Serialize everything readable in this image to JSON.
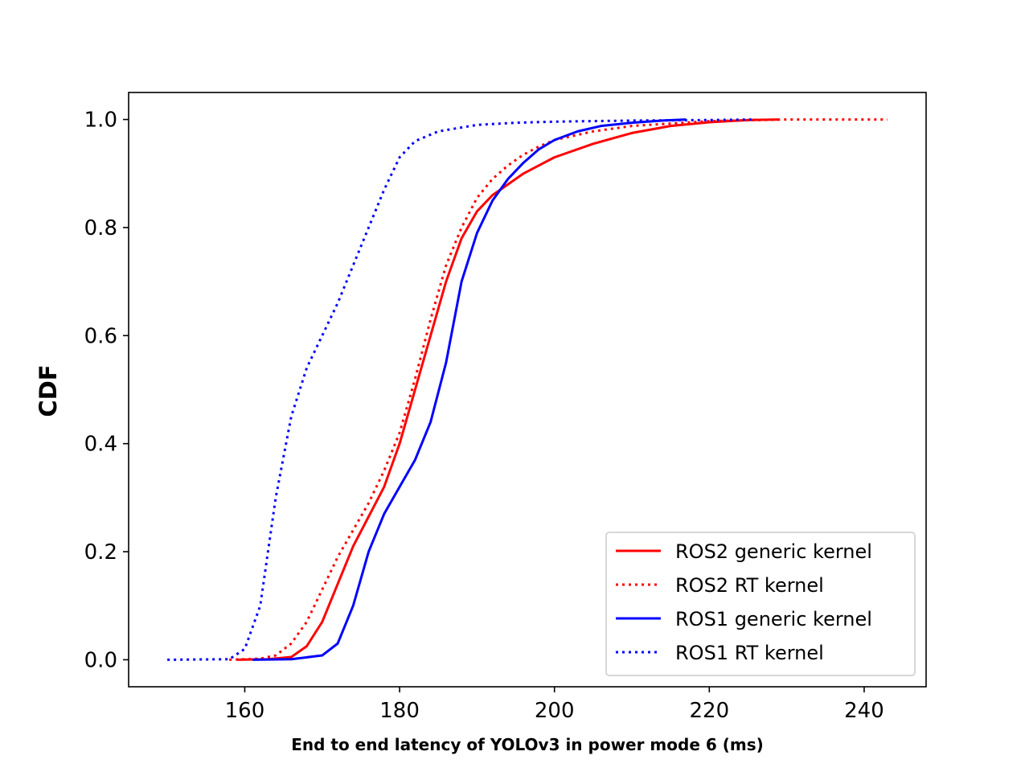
{
  "chart_data": {
    "type": "line",
    "title": "",
    "xlabel": "End to end latency of YOLOv3 in power mode 6 (ms)",
    "ylabel": "CDF",
    "xlim": [
      145,
      248
    ],
    "ylim": [
      -0.05,
      1.05
    ],
    "xticks": [
      "160",
      "180",
      "200",
      "220",
      "240"
    ],
    "yticks": [
      "0.0",
      "0.2",
      "0.4",
      "0.6",
      "0.8",
      "1.0"
    ],
    "grid": false,
    "legend_position": "lower-right",
    "series": [
      {
        "name": "ROS2 generic kernel",
        "color": "#ff0000",
        "dash": "solid",
        "x": [
          159,
          163,
          166,
          168,
          170,
          172,
          174,
          176,
          178,
          180,
          182,
          184,
          186,
          188,
          190,
          192,
          194,
          196,
          198,
          200,
          205,
          210,
          215,
          220,
          225,
          229
        ],
        "y": [
          0.0,
          0.001,
          0.005,
          0.025,
          0.07,
          0.14,
          0.21,
          0.265,
          0.32,
          0.4,
          0.5,
          0.6,
          0.7,
          0.78,
          0.83,
          0.86,
          0.88,
          0.9,
          0.915,
          0.93,
          0.955,
          0.975,
          0.988,
          0.995,
          0.999,
          1.0
        ]
      },
      {
        "name": "ROS2 RT kernel",
        "color": "#ff0000",
        "dash": "dotted",
        "x": [
          158,
          162,
          164,
          166,
          168,
          170,
          172,
          174,
          176,
          178,
          180,
          182,
          184,
          186,
          188,
          190,
          192,
          194,
          196,
          198,
          200,
          205,
          210,
          220,
          230,
          243
        ],
        "y": [
          0.0,
          0.002,
          0.008,
          0.03,
          0.07,
          0.13,
          0.19,
          0.24,
          0.29,
          0.35,
          0.42,
          0.52,
          0.63,
          0.73,
          0.8,
          0.855,
          0.89,
          0.915,
          0.935,
          0.95,
          0.962,
          0.978,
          0.988,
          0.997,
          1.0,
          1.0
        ]
      },
      {
        "name": "ROS1 generic kernel",
        "color": "#0000ff",
        "dash": "solid",
        "x": [
          161,
          166,
          170,
          172,
          174,
          176,
          178,
          180,
          182,
          184,
          186,
          188,
          190,
          192,
          194,
          196,
          198,
          200,
          203,
          206,
          210,
          214,
          217
        ],
        "y": [
          0.0,
          0.001,
          0.008,
          0.03,
          0.1,
          0.2,
          0.27,
          0.32,
          0.37,
          0.44,
          0.55,
          0.7,
          0.79,
          0.85,
          0.89,
          0.92,
          0.945,
          0.962,
          0.978,
          0.988,
          0.994,
          0.998,
          1.0
        ]
      },
      {
        "name": "ROS1 RT kernel",
        "color": "#0000ff",
        "dash": "dotted",
        "x": [
          150,
          158,
          160,
          162,
          164,
          166,
          168,
          170,
          172,
          174,
          176,
          178,
          180,
          182,
          185,
          190,
          195,
          200,
          210,
          220,
          226
        ],
        "y": [
          0.0,
          0.001,
          0.02,
          0.1,
          0.3,
          0.45,
          0.54,
          0.6,
          0.66,
          0.73,
          0.8,
          0.87,
          0.93,
          0.96,
          0.978,
          0.99,
          0.994,
          0.996,
          0.998,
          0.999,
          1.0
        ]
      }
    ]
  }
}
